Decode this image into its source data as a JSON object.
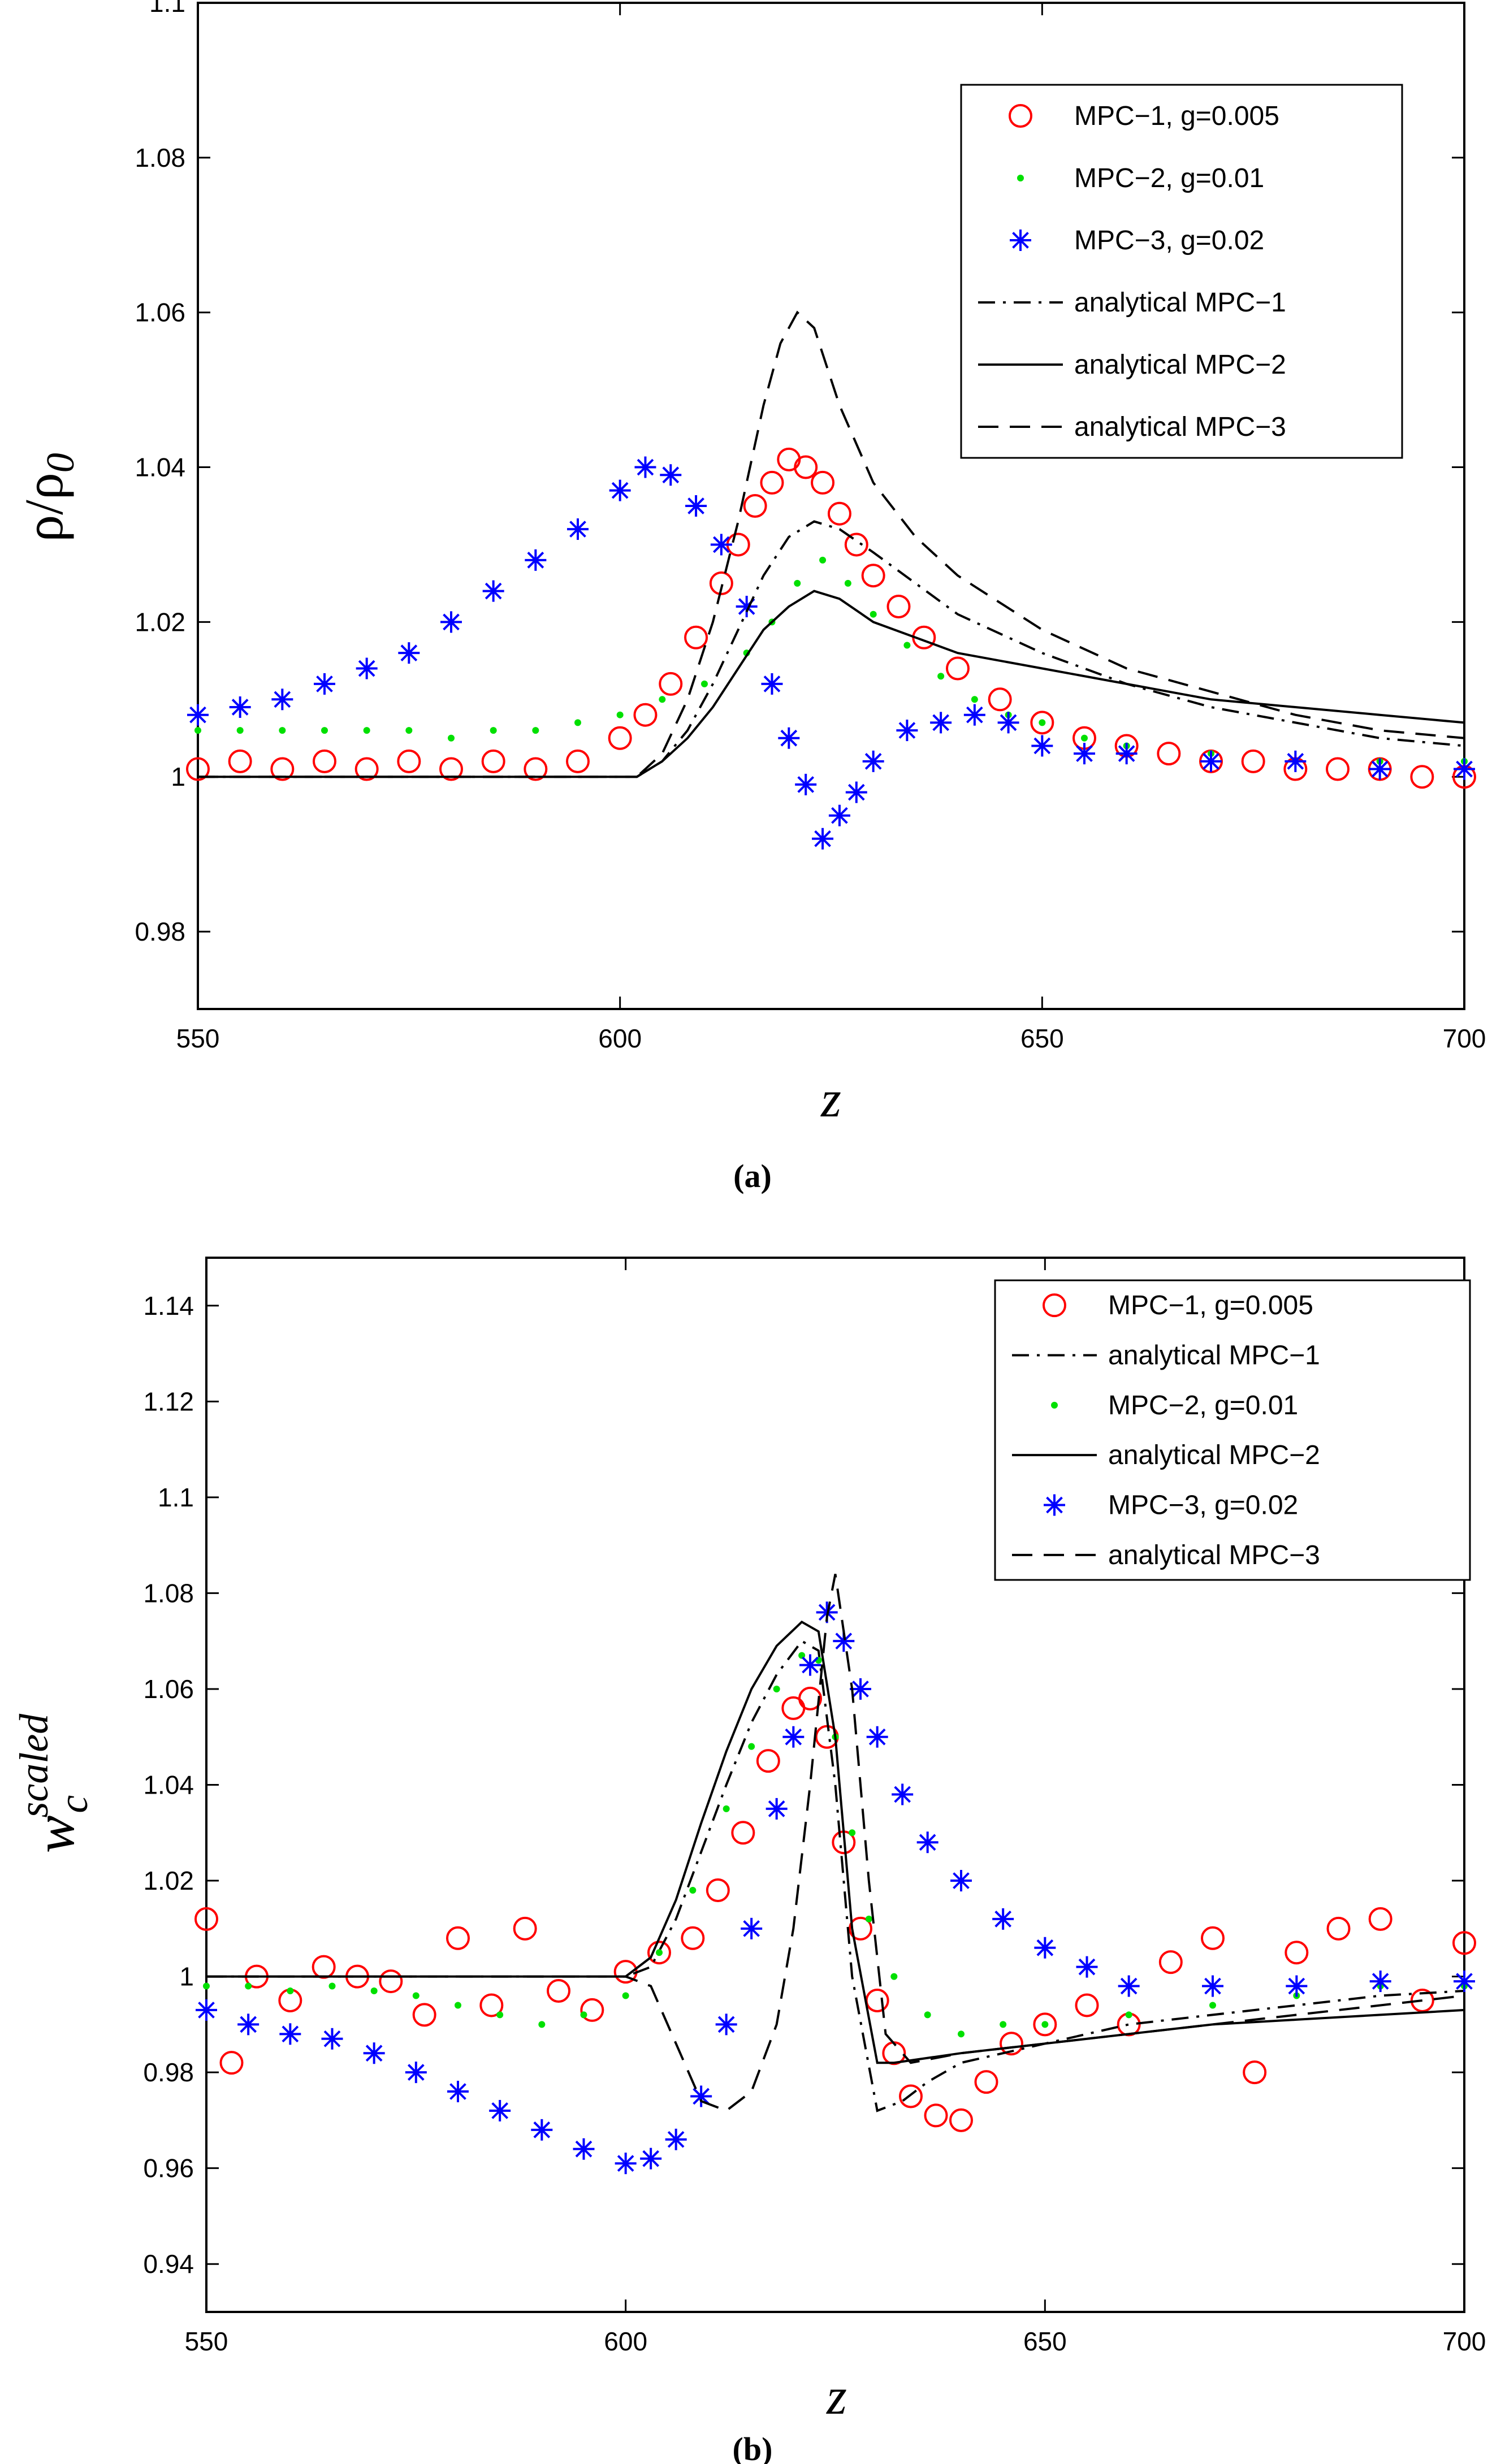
{
  "chart_data": [
    {
      "panel_label": "(a)",
      "type": "line",
      "xlabel": "z",
      "ylabel_main": "ρ/ρ",
      "ylabel_sub": "0",
      "xlim": [
        550,
        700
      ],
      "ylim": [
        0.97,
        1.1
      ],
      "xticks": [
        "550",
        "600",
        "650",
        "700"
      ],
      "yticks": [
        "0.98",
        "1",
        "1.02",
        "1.04",
        "1.06",
        "1.08",
        "1.1"
      ],
      "legend_position": "top-right",
      "series": [
        {
          "name": "MPC−1, g=0.005",
          "style": "circle",
          "color": "#ff0000",
          "kind": "scatter",
          "x": [
            550,
            555,
            560,
            565,
            570,
            575,
            580,
            585,
            590,
            595,
            600,
            603,
            606,
            609,
            612,
            614,
            616,
            618,
            620,
            622,
            624,
            626,
            628,
            630,
            633,
            636,
            640,
            645,
            650,
            655,
            660,
            665,
            670,
            675,
            680,
            685,
            690,
            695,
            700
          ],
          "y": [
            1.001,
            1.002,
            1.001,
            1.002,
            1.001,
            1.002,
            1.001,
            1.002,
            1.001,
            1.002,
            1.005,
            1.008,
            1.012,
            1.018,
            1.025,
            1.03,
            1.035,
            1.038,
            1.041,
            1.04,
            1.038,
            1.034,
            1.03,
            1.026,
            1.022,
            1.018,
            1.014,
            1.01,
            1.007,
            1.005,
            1.004,
            1.003,
            1.002,
            1.002,
            1.001,
            1.001,
            1.001,
            1.0,
            1.0
          ]
        },
        {
          "name": "MPC−2, g=0.01",
          "style": "dot",
          "color": "#00e000",
          "kind": "scatter",
          "x": [
            550,
            555,
            560,
            565,
            570,
            575,
            580,
            585,
            590,
            595,
            600,
            605,
            610,
            615,
            618,
            621,
            624,
            627,
            630,
            634,
            638,
            642,
            646,
            650,
            655,
            660,
            670,
            680,
            690,
            700
          ],
          "y": [
            1.006,
            1.006,
            1.006,
            1.006,
            1.006,
            1.006,
            1.005,
            1.006,
            1.006,
            1.007,
            1.008,
            1.01,
            1.012,
            1.016,
            1.02,
            1.025,
            1.028,
            1.025,
            1.021,
            1.017,
            1.013,
            1.01,
            1.008,
            1.007,
            1.005,
            1.004,
            1.003,
            1.002,
            1.002,
            1.002
          ]
        },
        {
          "name": "MPC−3, g=0.02",
          "style": "asterisk",
          "color": "#0000ff",
          "kind": "scatter",
          "x": [
            550,
            555,
            560,
            565,
            570,
            575,
            580,
            585,
            590,
            595,
            600,
            603,
            606,
            609,
            612,
            615,
            618,
            620,
            622,
            624,
            626,
            628,
            630,
            634,
            638,
            642,
            646,
            650,
            655,
            660,
            670,
            680,
            690,
            700
          ],
          "y": [
            1.008,
            1.009,
            1.01,
            1.012,
            1.014,
            1.016,
            1.02,
            1.024,
            1.028,
            1.032,
            1.037,
            1.04,
            1.039,
            1.035,
            1.03,
            1.022,
            1.012,
            1.005,
            0.999,
            0.992,
            0.995,
            0.998,
            1.002,
            1.006,
            1.007,
            1.008,
            1.007,
            1.004,
            1.003,
            1.003,
            1.002,
            1.002,
            1.001,
            1.001
          ]
        },
        {
          "name": "analytical MPC−1",
          "style": "dashdot",
          "color": "#000000",
          "kind": "line",
          "x": [
            550,
            600,
            602,
            605,
            608,
            611,
            614,
            617,
            620,
            623,
            626,
            630,
            635,
            640,
            650,
            660,
            670,
            680,
            690,
            700
          ],
          "y": [
            1.0,
            1.0,
            1.0,
            1.002,
            1.006,
            1.012,
            1.019,
            1.026,
            1.031,
            1.033,
            1.032,
            1.029,
            1.025,
            1.021,
            1.016,
            1.012,
            1.009,
            1.007,
            1.005,
            1.004
          ]
        },
        {
          "name": "analytical MPC−2",
          "style": "solid",
          "color": "#000000",
          "kind": "line",
          "x": [
            550,
            600,
            602,
            605,
            608,
            611,
            614,
            617,
            620,
            623,
            626,
            630,
            635,
            640,
            650,
            660,
            670,
            680,
            690,
            700
          ],
          "y": [
            1.0,
            1.0,
            1.0,
            1.002,
            1.005,
            1.009,
            1.014,
            1.019,
            1.022,
            1.024,
            1.023,
            1.02,
            1.018,
            1.016,
            1.014,
            1.012,
            1.01,
            1.009,
            1.008,
            1.007
          ]
        },
        {
          "name": "analytical MPC−3",
          "style": "dashed",
          "color": "#000000",
          "kind": "line",
          "x": [
            550,
            600,
            602,
            605,
            608,
            611,
            614,
            617,
            619,
            621,
            623,
            626,
            630,
            635,
            640,
            650,
            660,
            670,
            680,
            690,
            700
          ],
          "y": [
            1.0,
            1.0,
            1.0,
            1.003,
            1.01,
            1.02,
            1.033,
            1.048,
            1.056,
            1.06,
            1.058,
            1.048,
            1.038,
            1.031,
            1.026,
            1.019,
            1.014,
            1.011,
            1.008,
            1.006,
            1.005
          ]
        }
      ]
    },
    {
      "panel_label": "(b)",
      "type": "line",
      "xlabel": "z",
      "ylabel_main": "w",
      "ylabel_sub": "c",
      "ylabel_sup": "scaled",
      "xlim": [
        550,
        700
      ],
      "ylim": [
        0.93,
        1.15
      ],
      "xticks": [
        "550",
        "600",
        "650",
        "700"
      ],
      "yticks": [
        "0.94",
        "0.96",
        "0.98",
        "1",
        "1.02",
        "1.04",
        "1.06",
        "1.08",
        "1.1",
        "1.12",
        "1.14"
      ],
      "legend_position": "top-right",
      "series": [
        {
          "name": "MPC−1, g=0.005",
          "style": "circle",
          "color": "#ff0000",
          "kind": "scatter",
          "x": [
            550,
            553,
            556,
            560,
            564,
            568,
            572,
            576,
            580,
            584,
            588,
            592,
            596,
            600,
            604,
            608,
            611,
            614,
            617,
            620,
            622,
            624,
            626,
            628,
            630,
            632,
            634,
            637,
            640,
            643,
            646,
            650,
            655,
            660,
            665,
            670,
            675,
            680,
            685,
            690,
            695,
            700
          ],
          "y": [
            1.012,
            0.982,
            1.0,
            0.995,
            1.002,
            1.0,
            0.999,
            0.992,
            1.008,
            0.994,
            1.01,
            0.997,
            0.993,
            1.001,
            1.005,
            1.008,
            1.018,
            1.03,
            1.045,
            1.056,
            1.058,
            1.05,
            1.028,
            1.01,
            0.995,
            0.984,
            0.975,
            0.971,
            0.97,
            0.978,
            0.986,
            0.99,
            0.994,
            0.99,
            1.003,
            1.008,
            0.98,
            1.005,
            1.01,
            1.012,
            0.995,
            1.007
          ]
        },
        {
          "name": "analytical MPC−1",
          "style": "dashdot",
          "color": "#000000",
          "kind": "line",
          "x": [
            550,
            600,
            603,
            606,
            609,
            612,
            615,
            618,
            621,
            623,
            625,
            627,
            630,
            633,
            636,
            640,
            650,
            660,
            670,
            680,
            690,
            700
          ],
          "y": [
            1.0,
            1.0,
            1.002,
            1.012,
            1.026,
            1.04,
            1.053,
            1.063,
            1.07,
            1.068,
            1.04,
            1.0,
            0.972,
            0.974,
            0.978,
            0.982,
            0.986,
            0.99,
            0.992,
            0.994,
            0.996,
            0.997
          ]
        },
        {
          "name": "MPC−2, g=0.01",
          "style": "dot",
          "color": "#00e000",
          "kind": "scatter",
          "x": [
            550,
            555,
            560,
            565,
            570,
            575,
            580,
            585,
            590,
            595,
            600,
            604,
            608,
            612,
            615,
            618,
            621,
            623,
            625,
            627,
            629,
            632,
            636,
            640,
            645,
            650,
            660,
            670,
            680,
            690,
            700
          ],
          "y": [
            0.998,
            0.998,
            0.997,
            0.998,
            0.997,
            0.996,
            0.994,
            0.992,
            0.99,
            0.992,
            0.996,
            1.005,
            1.018,
            1.035,
            1.048,
            1.06,
            1.067,
            1.066,
            1.05,
            1.03,
            1.012,
            1.0,
            0.992,
            0.988,
            0.99,
            0.99,
            0.992,
            0.994,
            0.996,
            0.998,
            0.998
          ]
        },
        {
          "name": "analytical MPC−2",
          "style": "solid",
          "color": "#000000",
          "kind": "line",
          "x": [
            550,
            600,
            603,
            606,
            609,
            612,
            615,
            618,
            621,
            623,
            625,
            627,
            630,
            632,
            640,
            650,
            660,
            670,
            680,
            690,
            700
          ],
          "y": [
            1.0,
            1.0,
            1.004,
            1.016,
            1.032,
            1.047,
            1.06,
            1.069,
            1.074,
            1.072,
            1.05,
            1.01,
            0.982,
            0.982,
            0.984,
            0.986,
            0.988,
            0.99,
            0.991,
            0.992,
            0.993
          ]
        },
        {
          "name": "MPC−3, g=0.02",
          "style": "asterisk",
          "color": "#0000ff",
          "kind": "scatter",
          "x": [
            550,
            555,
            560,
            565,
            570,
            575,
            580,
            585,
            590,
            595,
            600,
            603,
            606,
            609,
            612,
            615,
            618,
            620,
            622,
            624,
            626,
            628,
            630,
            633,
            636,
            640,
            645,
            650,
            655,
            660,
            670,
            680,
            690,
            700
          ],
          "y": [
            0.993,
            0.99,
            0.988,
            0.987,
            0.984,
            0.98,
            0.976,
            0.972,
            0.968,
            0.964,
            0.961,
            0.962,
            0.966,
            0.975,
            0.99,
            1.01,
            1.035,
            1.05,
            1.065,
            1.076,
            1.07,
            1.06,
            1.05,
            1.038,
            1.028,
            1.02,
            1.012,
            1.006,
            1.002,
            0.998,
            0.998,
            0.998,
            0.999,
            0.999
          ]
        },
        {
          "name": "analytical MPC−3",
          "style": "dashed",
          "color": "#000000",
          "kind": "line",
          "x": [
            550,
            600,
            603,
            606,
            609,
            612,
            615,
            618,
            620,
            622,
            624,
            625,
            627,
            629,
            631,
            634,
            640,
            650,
            660,
            670,
            680,
            690,
            700
          ],
          "y": [
            1.0,
            1.0,
            0.998,
            0.986,
            0.974,
            0.972,
            0.976,
            0.99,
            1.01,
            1.04,
            1.075,
            1.084,
            1.06,
            1.02,
            0.988,
            0.982,
            0.984,
            0.986,
            0.988,
            0.99,
            0.992,
            0.994,
            0.996
          ]
        }
      ]
    }
  ]
}
